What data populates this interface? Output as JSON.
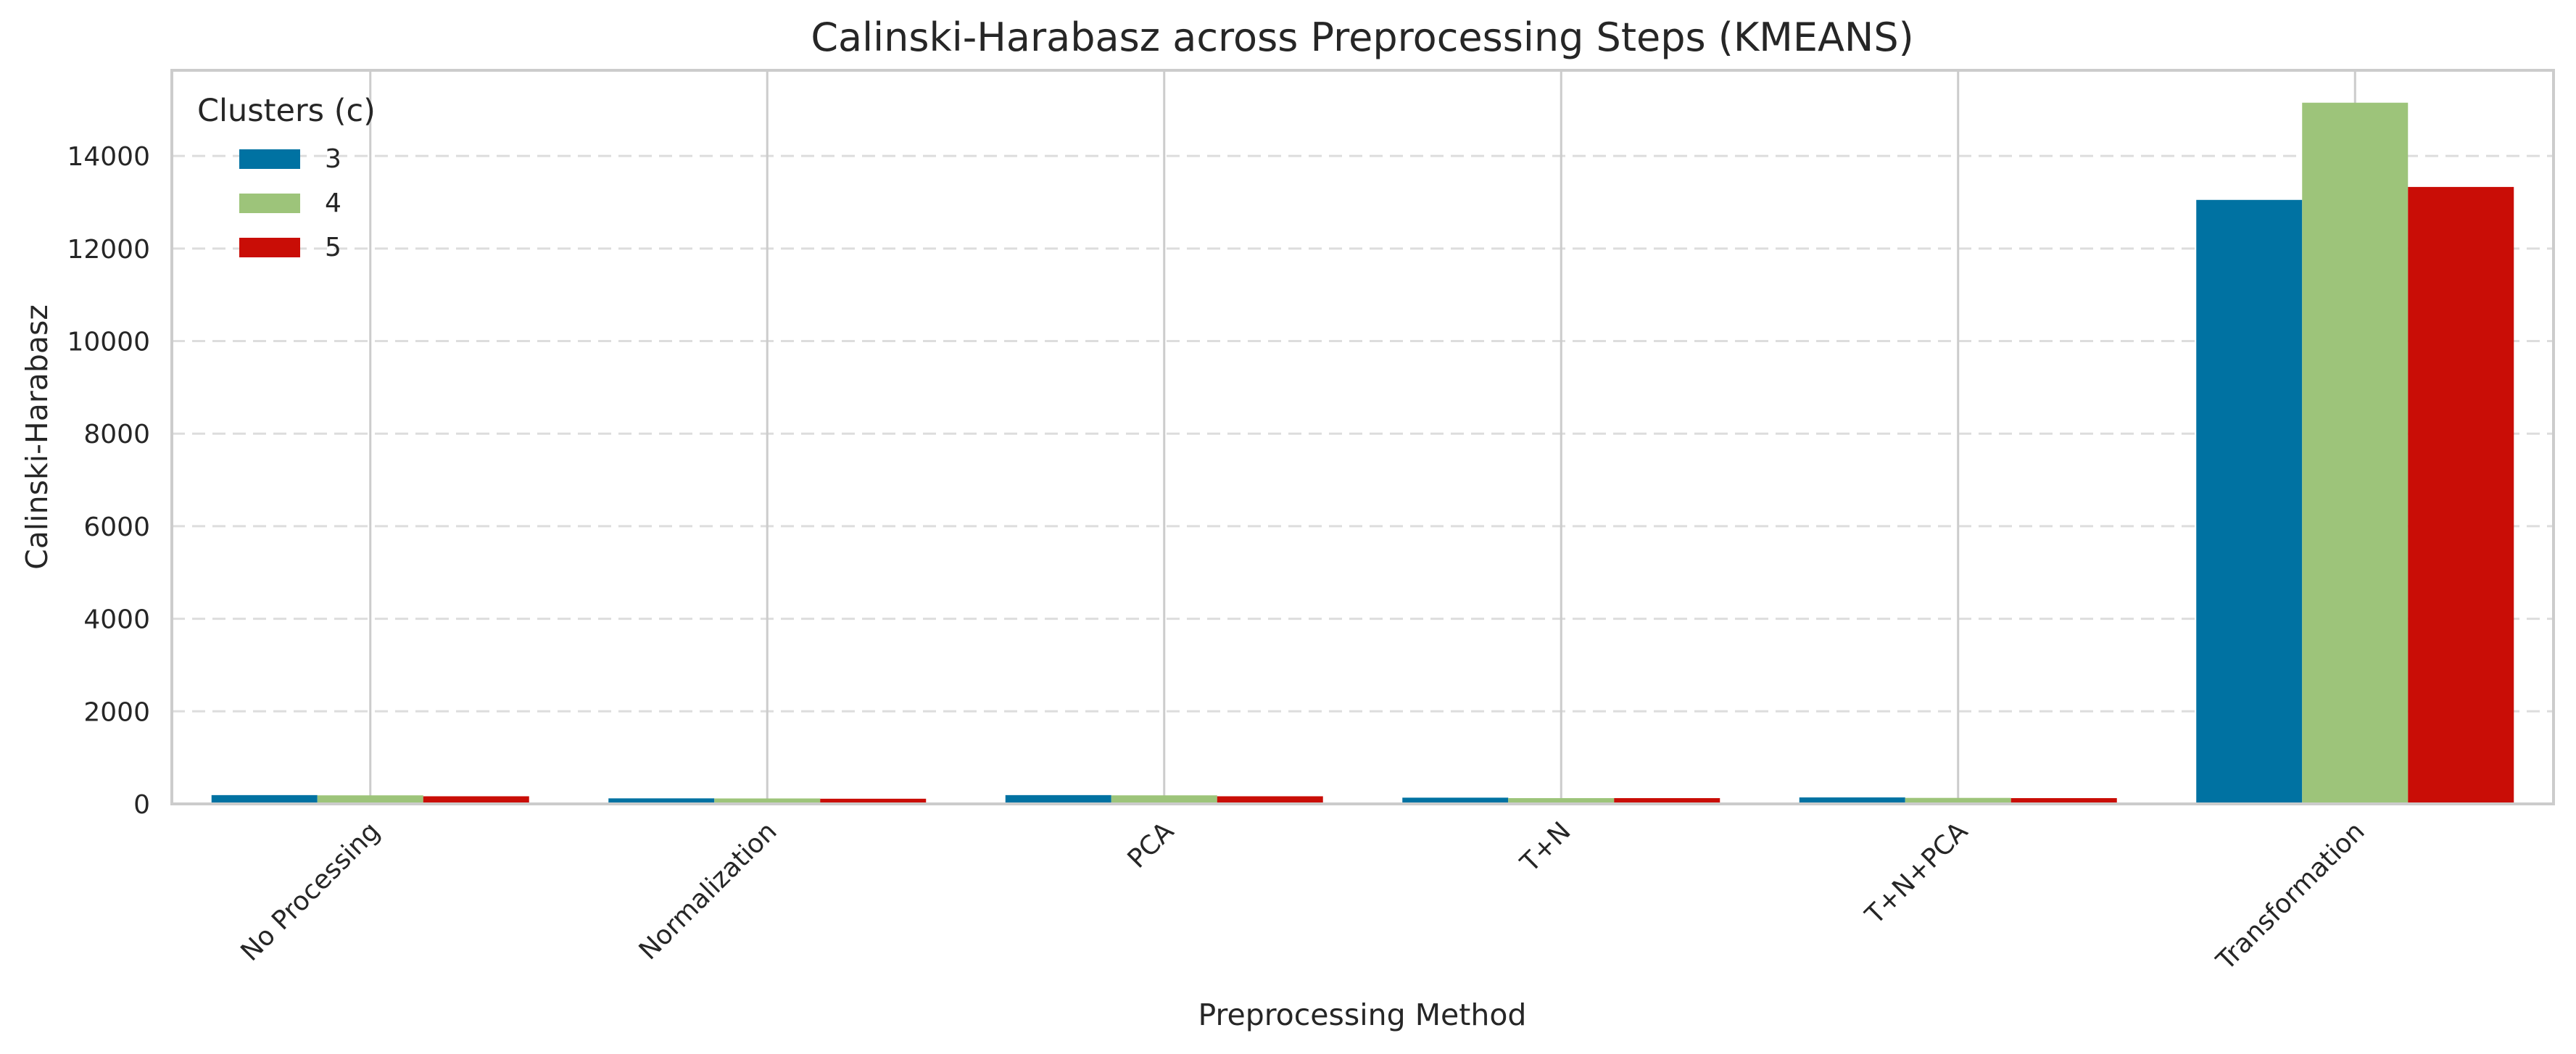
{
  "chart_data": {
    "type": "bar",
    "title": "Calinski-Harabasz across Preprocessing Steps (KMEANS)",
    "xlabel": "Preprocessing Method",
    "ylabel": "Calinski-Harabasz",
    "categories": [
      "No Processing",
      "Normalization",
      "PCA",
      "T+N",
      "T+N+PCA",
      "Transformation"
    ],
    "series": [
      {
        "name": "3",
        "color": "#0072a2",
        "values": [
          190,
          120,
          190,
          135,
          140,
          13050
        ]
      },
      {
        "name": "4",
        "color": "#9dc47a",
        "values": [
          185,
          118,
          185,
          125,
          130,
          15150
        ]
      },
      {
        "name": "5",
        "color": "#c90d06",
        "values": [
          165,
          112,
          165,
          125,
          125,
          13330
        ]
      }
    ],
    "ylim": [
      0,
      15850
    ],
    "yticks": [
      0,
      2000,
      4000,
      6000,
      8000,
      10000,
      12000,
      14000
    ],
    "legend": {
      "title": "Clusters (c)",
      "placement": "top-left"
    },
    "grid": {
      "y": true,
      "y_style": "dashed",
      "x": true,
      "x_style": "solid"
    },
    "xtick_rotation": 45
  }
}
